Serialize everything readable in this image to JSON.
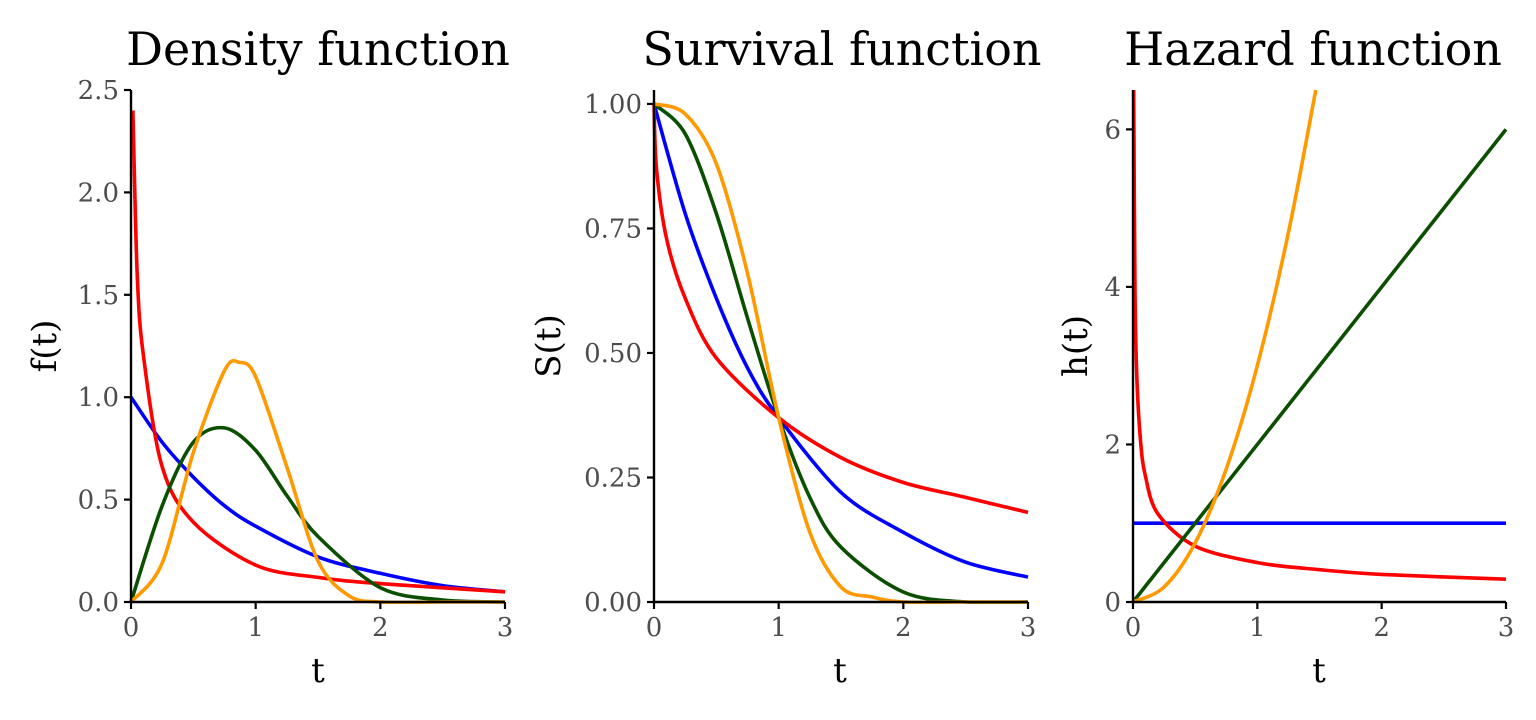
{
  "chart_data": [
    {
      "type": "line",
      "title": "Density function",
      "xlabel": "t",
      "ylabel": "f(t)",
      "xlim": [
        0,
        3
      ],
      "ylim": [
        0,
        2.5
      ],
      "x_ticks": [
        0,
        1,
        2,
        3
      ],
      "x_tick_labels": [
        "0",
        "1",
        "2",
        "3"
      ],
      "y_ticks": [
        0,
        0.5,
        1,
        1.5,
        2,
        2.5
      ],
      "y_tick_labels": [
        "0.0",
        "0.5",
        "1.0",
        "1.5",
        "2.0",
        "2.5"
      ],
      "grid": false,
      "series": [
        {
          "color": "#0000ff",
          "x": [
            0,
            0.25,
            0.5,
            0.75,
            1,
            1.5,
            2,
            2.5,
            3
          ],
          "y": [
            1.0,
            0.78,
            0.61,
            0.47,
            0.37,
            0.22,
            0.14,
            0.08,
            0.05
          ]
        },
        {
          "color": "#ff0000",
          "x": [
            0.015,
            0.05,
            0.1,
            0.25,
            0.5,
            1,
            1.5,
            2,
            3
          ],
          "y": [
            2.4,
            1.6,
            1.2,
            0.66,
            0.39,
            0.18,
            0.12,
            0.09,
            0.05
          ]
        },
        {
          "color": "#0b4f00",
          "x": [
            0,
            0.25,
            0.5,
            0.75,
            1,
            1.25,
            1.5,
            2,
            2.5,
            3
          ],
          "y": [
            0,
            0.47,
            0.78,
            0.85,
            0.74,
            0.52,
            0.32,
            0.07,
            0.01,
            0
          ]
        },
        {
          "color": "#ff9900",
          "x": [
            0,
            0.25,
            0.5,
            0.75,
            0.87,
            1,
            1.25,
            1.5,
            1.75,
            2,
            2.5,
            3
          ],
          "y": [
            0,
            0.19,
            0.73,
            1.13,
            1.17,
            1.1,
            0.66,
            0.2,
            0.03,
            0,
            0,
            0
          ]
        }
      ]
    },
    {
      "type": "line",
      "title": "Survival function",
      "xlabel": "t",
      "ylabel": "S(t)",
      "xlim": [
        0,
        3
      ],
      "ylim": [
        0,
        1
      ],
      "x_ticks": [
        0,
        1,
        2,
        3
      ],
      "x_tick_labels": [
        "0",
        "1",
        "2",
        "3"
      ],
      "y_ticks": [
        0,
        0.25,
        0.5,
        0.75,
        1
      ],
      "y_tick_labels": [
        "0.00",
        "0.25",
        "0.50",
        "0.75",
        "1.00"
      ],
      "grid": false,
      "series": [
        {
          "color": "#0000ff",
          "x": [
            0,
            0.25,
            0.5,
            0.75,
            1,
            1.5,
            2,
            2.5,
            3
          ],
          "y": [
            1.0,
            0.78,
            0.61,
            0.47,
            0.37,
            0.22,
            0.14,
            0.08,
            0.05
          ]
        },
        {
          "color": "#ff0000",
          "x": [
            0,
            0.02,
            0.1,
            0.25,
            0.5,
            1,
            1.5,
            2,
            2.5,
            3
          ],
          "y": [
            1.0,
            0.87,
            0.73,
            0.61,
            0.49,
            0.37,
            0.29,
            0.24,
            0.21,
            0.18
          ]
        },
        {
          "color": "#0b4f00",
          "x": [
            0,
            0.25,
            0.5,
            0.75,
            1,
            1.25,
            1.5,
            2,
            2.5,
            3
          ],
          "y": [
            1.0,
            0.94,
            0.78,
            0.57,
            0.37,
            0.21,
            0.11,
            0.02,
            0,
            0
          ]
        },
        {
          "color": "#ff9900",
          "x": [
            0,
            0.25,
            0.5,
            0.75,
            1,
            1.25,
            1.5,
            1.75,
            2,
            2.5,
            3
          ],
          "y": [
            1.0,
            0.98,
            0.88,
            0.66,
            0.37,
            0.14,
            0.03,
            0.01,
            0,
            0,
            0
          ]
        }
      ]
    },
    {
      "type": "line",
      "title": "Hazard function",
      "xlabel": "t",
      "ylabel": "h(t)",
      "xlim": [
        0,
        3
      ],
      "ylim": [
        0,
        6.5
      ],
      "x_ticks": [
        0,
        1,
        2,
        3
      ],
      "x_tick_labels": [
        "0",
        "1",
        "2",
        "3"
      ],
      "y_ticks": [
        0,
        2,
        4,
        6
      ],
      "y_tick_labels": [
        "0",
        "2",
        "4",
        "6"
      ],
      "grid": false,
      "series": [
        {
          "color": "#0000ff",
          "x": [
            0,
            3
          ],
          "y": [
            1,
            1
          ]
        },
        {
          "color": "#ff0000",
          "x": [
            0.006,
            0.015,
            0.03,
            0.06,
            0.1,
            0.2,
            0.5,
            1,
            1.5,
            2,
            3
          ],
          "y": [
            6.5,
            4.1,
            2.9,
            2.05,
            1.6,
            1.12,
            0.71,
            0.5,
            0.41,
            0.35,
            0.29
          ]
        },
        {
          "color": "#0b4f00",
          "x": [
            0,
            3
          ],
          "y": [
            0,
            6
          ]
        },
        {
          "color": "#ff9900",
          "x": [
            0,
            0.25,
            0.5,
            0.75,
            1,
            1.25,
            1.47
          ],
          "y": [
            0,
            0.19,
            0.75,
            1.69,
            3.0,
            4.69,
            6.5
          ]
        }
      ]
    }
  ]
}
